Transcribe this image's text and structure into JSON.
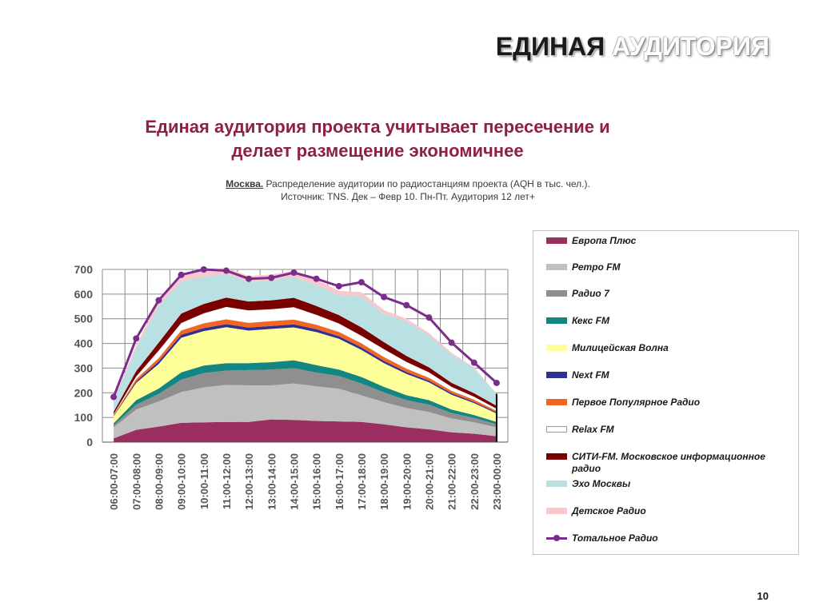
{
  "header": {
    "title_dark": "ЕДИНАЯ",
    "title_light": "АУДИТОРИЯ"
  },
  "headline": {
    "line1": "Единая аудитория проекта учитывает пересечение и",
    "line2": "делает размещение экономичнее"
  },
  "subtitle": {
    "city": "Москва.",
    "text": " Распределение аудитории по радиостанциям проекта (AQH в тыс. чел.).",
    "source": "Источник: TNS. Дек – Февр 10. Пн-Пт. Аудитория 12 лет+"
  },
  "chart_data": {
    "type": "area",
    "stacked": true,
    "categories": [
      "06:00-07:00",
      "07:00-08:00",
      "08:00-09:00",
      "09:00-10:00",
      "10:00-11:00",
      "11:00-12:00",
      "12:00-13:00",
      "13:00-14:00",
      "14:00-15:00",
      "15:00-16:00",
      "16:00-17:00",
      "17:00-18:00",
      "18:00-19:00",
      "19:00-20:00",
      "20:00-21:00",
      "21:00-22:00",
      "22:00-23:00",
      "23:00-00:00"
    ],
    "ylim": [
      0,
      700
    ],
    "yticks": [
      0,
      100,
      200,
      300,
      400,
      500,
      600,
      700
    ],
    "grid": true,
    "series": [
      {
        "name": "Европа Плюс",
        "color": "#9b2f62",
        "values": [
          15,
          50,
          63,
          78,
          80,
          82,
          82,
          92,
          90,
          86,
          84,
          82,
          72,
          60,
          52,
          40,
          34,
          24
        ]
      },
      {
        "name": "Ретро FM",
        "color": "#c0c0c0",
        "values": [
          45,
          82,
          102,
          125,
          142,
          150,
          148,
          138,
          148,
          140,
          132,
          108,
          90,
          78,
          70,
          56,
          46,
          36
        ]
      },
      {
        "name": "Радио 7",
        "color": "#8f8f8f",
        "values": [
          8,
          20,
          30,
          50,
          58,
          58,
          62,
          64,
          62,
          56,
          52,
          48,
          40,
          32,
          30,
          22,
          18,
          12
        ]
      },
      {
        "name": "Кекс FM",
        "color": "#138583",
        "values": [
          8,
          18,
          22,
          30,
          30,
          30,
          28,
          30,
          32,
          30,
          26,
          26,
          22,
          20,
          18,
          14,
          12,
          10
        ]
      },
      {
        "name": "Милицейская Волна",
        "color": "#ffff99",
        "values": [
          28,
          70,
          100,
          140,
          140,
          146,
          132,
          135,
          133,
          134,
          125,
          110,
          96,
          86,
          72,
          60,
          48,
          34
        ]
      },
      {
        "name": "Next FM",
        "color": "#2e3192",
        "values": [
          2,
          6,
          10,
          12,
          12,
          12,
          12,
          12,
          12,
          12,
          10,
          10,
          9,
          8,
          7,
          6,
          5,
          4
        ]
      },
      {
        "name": "Первое Популярное Радио",
        "color": "#f26522",
        "values": [
          5,
          10,
          14,
          18,
          20,
          20,
          20,
          20,
          20,
          18,
          18,
          17,
          16,
          14,
          12,
          10,
          9,
          7
        ]
      },
      {
        "name": "Relax FM",
        "color": "#ffffff",
        "values": [
          2,
          10,
          30,
          30,
          40,
          50,
          50,
          48,
          50,
          40,
          34,
          30,
          32,
          27,
          22,
          16,
          12,
          8
        ]
      },
      {
        "name": "СИТИ-FM. Московское информационное радио",
        "color": "#7a0000",
        "values": [
          10,
          22,
          32,
          38,
          38,
          38,
          36,
          36,
          38,
          36,
          34,
          34,
          28,
          24,
          20,
          16,
          14,
          12
        ]
      },
      {
        "name": "Эхо Москвы",
        "color": "#b9e0e2",
        "values": [
          45,
          90,
          150,
          130,
          110,
          95,
          80,
          80,
          85,
          85,
          80,
          125,
          115,
          140,
          130,
          115,
          100,
          45
        ]
      },
      {
        "name": "Детское Радио",
        "color": "#f8c8cc",
        "values": [
          3,
          14,
          20,
          22,
          26,
          25,
          23,
          25,
          24,
          21,
          18,
          18,
          15,
          11,
          9,
          7,
          5,
          4
        ]
      }
    ],
    "line_series": {
      "name": "Тотальное Радио",
      "color": "#7b2d8c",
      "values": [
        183,
        420,
        575,
        678,
        700,
        695,
        662,
        666,
        687,
        662,
        632,
        648,
        588,
        555,
        505,
        403,
        322,
        240
      ]
    }
  },
  "page_number": "10"
}
